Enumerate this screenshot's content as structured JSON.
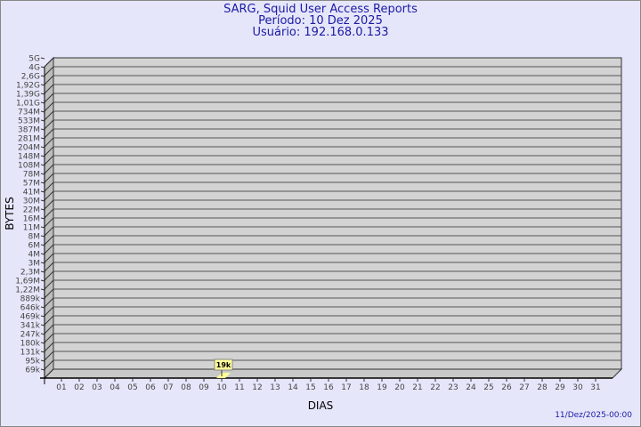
{
  "chart_data": {
    "type": "bar",
    "title": "SARG, Squid User Access Reports",
    "subtitle_period": "Período: 10 Dez 2025",
    "subtitle_user": "Usuário: 192.168.0.133",
    "xlabel": "DIAS",
    "ylabel": "BYTES",
    "y_scale": "log",
    "y_ticks": [
      "5G",
      "4G",
      "2,6G",
      "1,92G",
      "1,39G",
      "1,01G",
      "734M",
      "533M",
      "387M",
      "281M",
      "204M",
      "148M",
      "108M",
      "78M",
      "57M",
      "41M",
      "30M",
      "22M",
      "16M",
      "11M",
      "8M",
      "6M",
      "4M",
      "3M",
      "2,3M",
      "1,69M",
      "1,22M",
      "889k",
      "646k",
      "469k",
      "341k",
      "247k",
      "180k",
      "131k",
      "95k",
      "69k"
    ],
    "categories": [
      "01",
      "02",
      "03",
      "04",
      "05",
      "06",
      "07",
      "08",
      "09",
      "10",
      "11",
      "12",
      "13",
      "14",
      "15",
      "16",
      "17",
      "18",
      "19",
      "20",
      "21",
      "22",
      "23",
      "24",
      "25",
      "26",
      "27",
      "28",
      "29",
      "30",
      "31"
    ],
    "bars": [
      {
        "category": "10",
        "value": 19000,
        "label": "19k"
      }
    ],
    "grid": true,
    "colors": {
      "wall": "#d3d3d3",
      "bar": "#ffff9a",
      "text": "#1a1aa6",
      "grid": "#555555"
    }
  },
  "footer": {
    "timestamp": "11/Dez/2025-00:00"
  }
}
